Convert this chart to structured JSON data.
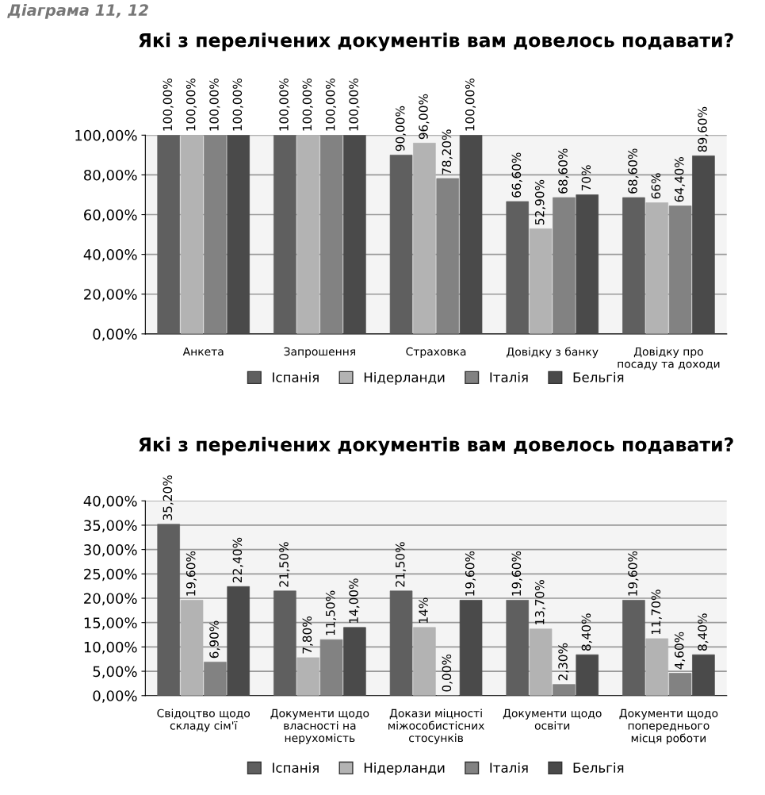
{
  "chart_data": [
    {
      "type": "bar",
      "title": "Які з перелічених документів вам довелось подавати?",
      "annotations": [
        "Діаграма 11, 12"
      ],
      "categories": [
        "Анкета",
        "Запрошення",
        "Страховка",
        "Довідку з банку",
        "Довідку про\nпосаду та доходи"
      ],
      "series": [
        {
          "name": "Іспанія",
          "color": "#5f5f5f",
          "values": [
            100,
            100,
            90,
            66.6,
            68.6
          ],
          "value_labels": [
            "100,00%",
            "100,00%",
            "90,00%",
            "66,60%",
            "68,60%"
          ]
        },
        {
          "name": "Нідерланди",
          "color": "#b3b3b3",
          "values": [
            100,
            100,
            96,
            52.9,
            66
          ],
          "value_labels": [
            "100,00%",
            "100,00%",
            "96,00%",
            "52,90%",
            "66%"
          ]
        },
        {
          "name": "Італія",
          "color": "#828282",
          "values": [
            100,
            100,
            78.2,
            68.6,
            64.4
          ],
          "value_labels": [
            "100,00%",
            "100,00%",
            "78,20%",
            "68,60%",
            "64,40%"
          ]
        },
        {
          "name": "Бельгія",
          "color": "#4a4a4a",
          "values": [
            100,
            100,
            100,
            70,
            89.6
          ],
          "value_labels": [
            "100,00%",
            "100,00%",
            "100,00%",
            "70%",
            "89,60%"
          ]
        }
      ],
      "ylim": [
        0,
        100
      ],
      "yticks": [
        {
          "value": 0,
          "label": "0,00%"
        },
        {
          "value": 20,
          "label": "20,00%"
        },
        {
          "value": 40,
          "label": "40,00%"
        },
        {
          "value": 60,
          "label": "60,00%"
        },
        {
          "value": 80,
          "label": "80,00%"
        },
        {
          "value": 100,
          "label": "100,00%"
        }
      ],
      "grid": "y",
      "legend": "bottom"
    },
    {
      "type": "bar",
      "title": "Які з перелічених документів вам довелось подавати?",
      "categories": [
        "Свідоцтво щодо\nскладу сім'ї",
        "Документи щодо\nвласності на\nнерухомість",
        "Докази міцності\nміжособистісних\nстосунків",
        "Документи щодо\nосвіти",
        "Документи щодо\nпопереднього\nмісця роботи"
      ],
      "series": [
        {
          "name": "Іспанія",
          "color": "#5f5f5f",
          "values": [
            35.2,
            21.5,
            21.5,
            19.6,
            19.6
          ],
          "value_labels": [
            "35,20%",
            "21,50%",
            "21,50%",
            "19,60%",
            "19,60%"
          ]
        },
        {
          "name": "Нідерланди",
          "color": "#b3b3b3",
          "values": [
            19.6,
            7.8,
            14,
            13.7,
            11.7
          ],
          "value_labels": [
            "19,60%",
            "7,80%",
            "14%",
            "13,70%",
            "11,70%"
          ]
        },
        {
          "name": "Італія",
          "color": "#828282",
          "values": [
            6.9,
            11.5,
            0,
            2.3,
            4.6
          ],
          "value_labels": [
            "6,90%",
            "11,50%",
            "0,00%",
            "2,30%",
            "4,60%"
          ]
        },
        {
          "name": "Бельгія",
          "color": "#4a4a4a",
          "values": [
            22.4,
            14,
            19.6,
            8.4,
            8.4
          ],
          "value_labels": [
            "22,40%",
            "14,00%",
            "19,60%",
            "8,40%",
            "8,40%"
          ]
        }
      ],
      "ylim": [
        0,
        40
      ],
      "yticks": [
        {
          "value": 0,
          "label": "0,00%"
        },
        {
          "value": 5,
          "label": "5,00%"
        },
        {
          "value": 10,
          "label": "10,00%"
        },
        {
          "value": 15,
          "label": "15,00%"
        },
        {
          "value": 20,
          "label": "20,00%"
        },
        {
          "value": 25,
          "label": "25,00%"
        },
        {
          "value": 30,
          "label": "30,00%"
        },
        {
          "value": 35,
          "label": "35,00%"
        },
        {
          "value": 40,
          "label": "40,00%"
        }
      ],
      "grid": "y",
      "legend": "bottom"
    }
  ]
}
